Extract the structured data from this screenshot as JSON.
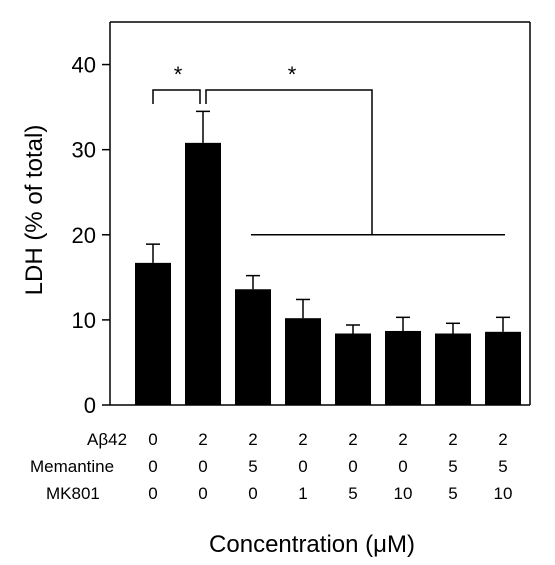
{
  "chart_data": {
    "type": "bar",
    "ylabel": "LDH (% of total)",
    "xlabel": "Concentration (μM)",
    "ylim": [
      0,
      45
    ],
    "yticks": [
      0,
      10,
      20,
      30,
      40
    ],
    "values": [
      16.7,
      30.8,
      13.6,
      10.2,
      8.4,
      8.7,
      8.4,
      8.6
    ],
    "errors": [
      2.2,
      3.7,
      1.6,
      2.2,
      1.0,
      1.6,
      1.2,
      1.7
    ],
    "conditions": [
      {
        "label": "Aβ42",
        "values": [
          "0",
          "2",
          "2",
          "2",
          "2",
          "2",
          "2",
          "2"
        ]
      },
      {
        "label": "Memantine",
        "values": [
          "0",
          "0",
          "5",
          "0",
          "0",
          "0",
          "5",
          "5"
        ]
      },
      {
        "label": "MK801",
        "values": [
          "0",
          "0",
          "0",
          "1",
          "5",
          "10",
          "5",
          "10"
        ]
      }
    ],
    "annotations": [
      {
        "text": "*",
        "from_bar": 0,
        "to_bar": 1
      },
      {
        "text": "*",
        "from_bar": 1,
        "to_bar": [
          2,
          3,
          4,
          5,
          6,
          7
        ]
      }
    ],
    "bar_color": "#000000",
    "grid": false
  }
}
